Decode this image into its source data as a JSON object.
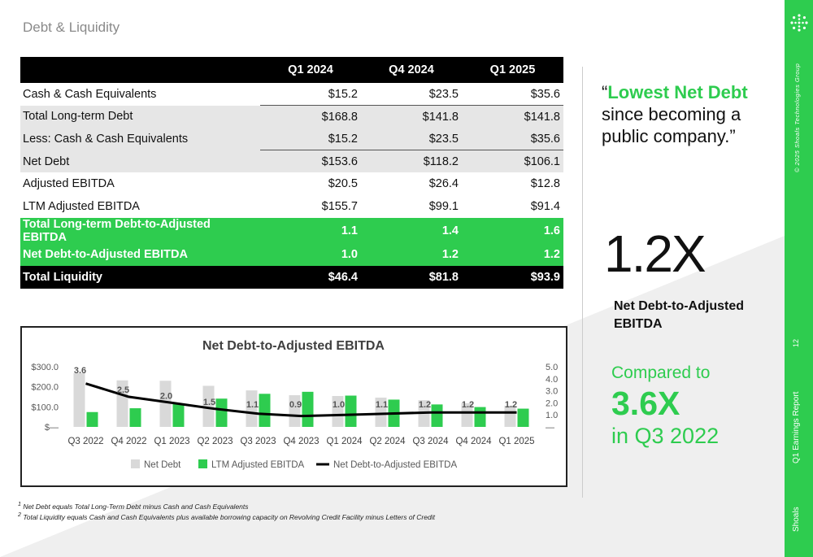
{
  "page_title": "Debt & Liquidity",
  "table": {
    "columns": [
      "Q1 2024",
      "Q4 2024",
      "Q1 2025"
    ],
    "rows": [
      {
        "label": "Cash & Cash Equivalents",
        "values": [
          "$15.2",
          "$23.5",
          "$35.6"
        ]
      },
      {
        "label": "Total Long-term Debt",
        "values": [
          "$168.8",
          "$141.8",
          "$141.8"
        ]
      },
      {
        "label": "Less: Cash & Cash Equivalents",
        "values": [
          "$15.2",
          "$23.5",
          "$35.6"
        ]
      },
      {
        "label": "Net Debt",
        "values": [
          "$153.6",
          "$118.2",
          "$106.1"
        ]
      },
      {
        "label": "Adjusted EBITDA",
        "values": [
          "$20.5",
          "$26.4",
          "$12.8"
        ]
      },
      {
        "label": "LTM Adjusted EBITDA",
        "values": [
          "$155.7",
          "$99.1",
          "$91.4"
        ]
      },
      {
        "label": "Total Long-term Debt-to-Adjusted EBITDA",
        "values": [
          "1.1",
          "1.4",
          "1.6"
        ]
      },
      {
        "label": "Net Debt-to-Adjusted EBITDA",
        "values": [
          "1.0",
          "1.2",
          "1.2"
        ]
      },
      {
        "label": "Total Liquidity",
        "values": [
          "$46.4",
          "$81.8",
          "$93.9"
        ]
      }
    ]
  },
  "chart_data": {
    "type": "bar",
    "title": "Net Debt-to-Adjusted EBITDA",
    "categories": [
      "Q3 2022",
      "Q4 2022",
      "Q1 2023",
      "Q2 2023",
      "Q3 2023",
      "Q4 2023",
      "Q1 2024",
      "Q2 2024",
      "Q3 2024",
      "Q4 2024",
      "Q1 2025"
    ],
    "series": [
      {
        "name": "Net Debt",
        "type": "bar",
        "axis": "left",
        "color": "#d9d9d9",
        "values": [
          268,
          232,
          230,
          205,
          182,
          158,
          154,
          146,
          133,
          118,
          106
        ]
      },
      {
        "name": "LTM Adjusted EBITDA",
        "type": "bar",
        "axis": "left",
        "color": "#2ecc4f",
        "values": [
          74,
          93,
          114,
          141,
          165,
          175,
          156,
          136,
          112,
          99,
          91
        ]
      },
      {
        "name": "Net Debt-to-Adjusted EBITDA",
        "type": "line",
        "axis": "right",
        "color": "#000000",
        "values": [
          3.6,
          2.5,
          2.0,
          1.5,
          1.1,
          0.9,
          1.0,
          1.1,
          1.2,
          1.2,
          1.2
        ]
      }
    ],
    "data_labels": [
      "3.6",
      "2.5",
      "2.0",
      "1.5",
      "1.1",
      "0.9",
      "1.0",
      "1.1",
      "1.2",
      "1.2",
      "1.2"
    ],
    "y_left": {
      "ylim": [
        0,
        300
      ],
      "ticks": [
        "$300.0",
        "$200.0",
        "$100.0",
        "$—"
      ]
    },
    "y_right": {
      "ylim": [
        0,
        5
      ],
      "ticks": [
        "5.0",
        "4.0",
        "3.0",
        "2.0",
        "1.0",
        "—"
      ]
    },
    "legend_position": "bottom",
    "grid": false
  },
  "footnotes": [
    {
      "sup": "1",
      "text": "Net Debt equals Total Long-Term Debt minus Cash and Cash Equivalents"
    },
    {
      "sup": "2",
      "text": "Total Liquidity equals Cash and Cash Equivalents plus available borrowing capacity on Revolving Credit Facility minus Letters of Credit"
    }
  ],
  "quote": {
    "open": "“",
    "highlight": "Lowest Net Debt",
    "rest": "since becoming a public company.”"
  },
  "metric": {
    "value": "1.2X",
    "label": "Net Debt-to-Adjusted EBITDA"
  },
  "compare": {
    "line1": "Compared to",
    "value": "3.6X",
    "line3": "in Q3 2022"
  },
  "sidebar": {
    "copyright": "© 2025 Shoals Technologies Group",
    "page_number": "12",
    "report": "Q1 Earnings Report",
    "brand": "Shoals"
  },
  "colors": {
    "accent": "#2ecc4f",
    "dark": "#000000",
    "gray": "#d9d9d9"
  }
}
